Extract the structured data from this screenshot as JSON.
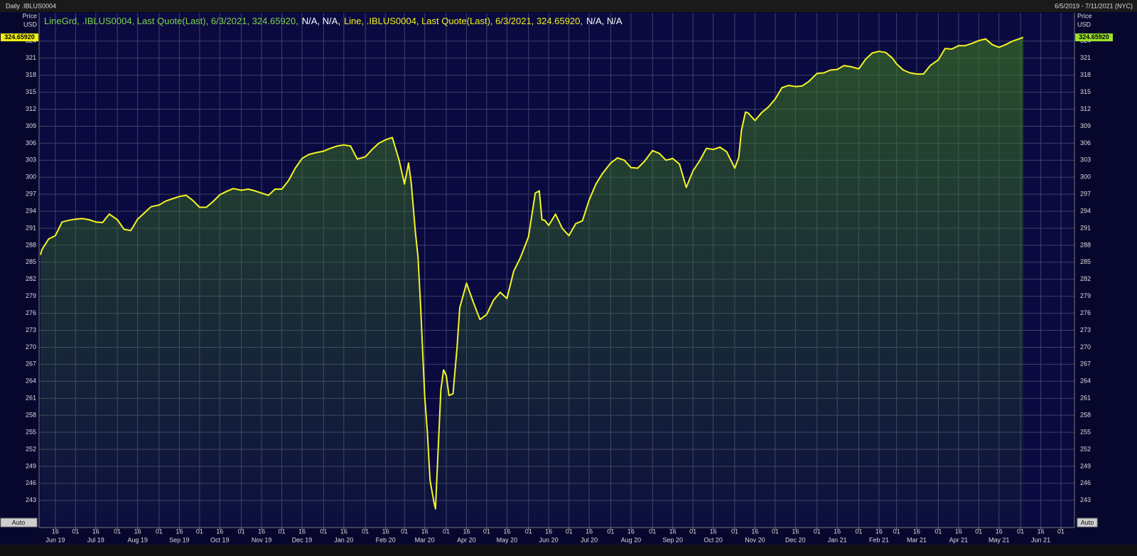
{
  "header": {
    "title": "Daily .IBLUS0004",
    "range": "6/5/2019 - 7/11/2021 (NYC)"
  },
  "auto_buttons": [
    "Auto",
    "Auto"
  ],
  "chart_data": {
    "type": "line",
    "legend": [
      {
        "text": "LineGrd, .IBLUS0004, Last Quote(Last), 6/3/2021, 324.65920,",
        "color": "#7ed44a"
      },
      {
        "text": "N/A, N/A,",
        "color": "#ffffff"
      },
      {
        "text": "Line, .IBLUS0004, Last Quote(Last), 6/3/2021, 324.65920,",
        "color": "#f2f21e"
      },
      {
        "text": "N/A, N/A",
        "color": "#ffffff"
      }
    ],
    "y_label": [
      "Price",
      "USD"
    ],
    "grid": true,
    "line_color": "#f5f522",
    "area_color": "#3f7d1f",
    "left_tag_color": "#f0f014",
    "right_tag_color": "#9ae22c",
    "xlim": [
      "2019-06-05",
      "2021-07-11"
    ],
    "ylim": [
      238.2,
      329
    ],
    "yticks": [
      243,
      246,
      249,
      252,
      255,
      258,
      261,
      264,
      267,
      270,
      273,
      276,
      279,
      282,
      285,
      288,
      291,
      294,
      297,
      300,
      303,
      306,
      309,
      312,
      315,
      318,
      321,
      324
    ],
    "xticks": [
      {
        "value": "2019-06-16",
        "label": "16"
      },
      {
        "value": "2019-07-01",
        "label": "01"
      },
      {
        "value": "2019-07-16",
        "label": "16"
      },
      {
        "value": "2019-08-01",
        "label": "01"
      },
      {
        "value": "2019-08-16",
        "label": "16"
      },
      {
        "value": "2019-09-01",
        "label": "01"
      },
      {
        "value": "2019-09-16",
        "label": "16"
      },
      {
        "value": "2019-10-01",
        "label": "01"
      },
      {
        "value": "2019-10-16",
        "label": "16"
      },
      {
        "value": "2019-11-01",
        "label": "01"
      },
      {
        "value": "2019-11-16",
        "label": "16"
      },
      {
        "value": "2019-12-01",
        "label": "01"
      },
      {
        "value": "2019-12-16",
        "label": "16"
      },
      {
        "value": "2020-01-01",
        "label": "01"
      },
      {
        "value": "2020-01-16",
        "label": "16"
      },
      {
        "value": "2020-02-01",
        "label": "01"
      },
      {
        "value": "2020-02-16",
        "label": "16"
      },
      {
        "value": "2020-03-01",
        "label": "01"
      },
      {
        "value": "2020-03-16",
        "label": "16"
      },
      {
        "value": "2020-04-01",
        "label": "01"
      },
      {
        "value": "2020-04-16",
        "label": "16"
      },
      {
        "value": "2020-05-01",
        "label": "01"
      },
      {
        "value": "2020-05-16",
        "label": "16"
      },
      {
        "value": "2020-06-01",
        "label": "01"
      },
      {
        "value": "2020-06-16",
        "label": "16"
      },
      {
        "value": "2020-07-01",
        "label": "01"
      },
      {
        "value": "2020-07-16",
        "label": "16"
      },
      {
        "value": "2020-08-01",
        "label": "01"
      },
      {
        "value": "2020-08-16",
        "label": "16"
      },
      {
        "value": "2020-09-01",
        "label": "01"
      },
      {
        "value": "2020-09-16",
        "label": "16"
      },
      {
        "value": "2020-10-01",
        "label": "01"
      },
      {
        "value": "2020-10-16",
        "label": "16"
      },
      {
        "value": "2020-11-01",
        "label": "01"
      },
      {
        "value": "2020-11-16",
        "label": "16"
      },
      {
        "value": "2020-12-01",
        "label": "01"
      },
      {
        "value": "2020-12-16",
        "label": "16"
      },
      {
        "value": "2021-01-01",
        "label": "01"
      },
      {
        "value": "2021-01-16",
        "label": "16"
      },
      {
        "value": "2021-02-01",
        "label": "01"
      },
      {
        "value": "2021-02-16",
        "label": "16"
      },
      {
        "value": "2021-03-01",
        "label": "01"
      },
      {
        "value": "2021-03-16",
        "label": "16"
      },
      {
        "value": "2021-04-01",
        "label": "01"
      },
      {
        "value": "2021-04-16",
        "label": "16"
      },
      {
        "value": "2021-05-01",
        "label": "01"
      },
      {
        "value": "2021-05-16",
        "label": "16"
      },
      {
        "value": "2021-06-01",
        "label": "01"
      },
      {
        "value": "2021-06-16",
        "label": "16"
      },
      {
        "value": "2021-07-01",
        "label": "01"
      }
    ],
    "month_labels": [
      {
        "value": "2019-06-16",
        "label": "Jun 19"
      },
      {
        "value": "2019-07-16",
        "label": "Jul 19"
      },
      {
        "value": "2019-08-16",
        "label": "Aug 19"
      },
      {
        "value": "2019-09-16",
        "label": "Sep 19"
      },
      {
        "value": "2019-10-16",
        "label": "Oct 19"
      },
      {
        "value": "2019-11-16",
        "label": "Nov 19"
      },
      {
        "value": "2019-12-16",
        "label": "Dec 19"
      },
      {
        "value": "2020-01-16",
        "label": "Jan 20"
      },
      {
        "value": "2020-02-16",
        "label": "Feb 20"
      },
      {
        "value": "2020-03-16",
        "label": "Mar 20"
      },
      {
        "value": "2020-04-16",
        "label": "Apr 20"
      },
      {
        "value": "2020-05-16",
        "label": "May 20"
      },
      {
        "value": "2020-06-16",
        "label": "Jun 20"
      },
      {
        "value": "2020-07-16",
        "label": "Jul 20"
      },
      {
        "value": "2020-08-16",
        "label": "Aug 20"
      },
      {
        "value": "2020-09-16",
        "label": "Sep 20"
      },
      {
        "value": "2020-10-16",
        "label": "Oct 20"
      },
      {
        "value": "2020-11-16",
        "label": "Nov 20"
      },
      {
        "value": "2020-12-16",
        "label": "Dec 20"
      },
      {
        "value": "2021-01-16",
        "label": "Jan 21"
      },
      {
        "value": "2021-02-16",
        "label": "Feb 21"
      },
      {
        "value": "2021-03-16",
        "label": "Mar 21"
      },
      {
        "value": "2021-04-16",
        "label": "Apr 21"
      },
      {
        "value": "2021-05-16",
        "label": "May 21"
      },
      {
        "value": "2021-06-16",
        "label": "Jun 21"
      }
    ],
    "x": [
      "2019-06-05",
      "2019-06-06",
      "2019-06-11",
      "2019-06-16",
      "2019-06-21",
      "2019-06-26",
      "2019-07-01",
      "2019-07-06",
      "2019-07-11",
      "2019-07-16",
      "2019-07-21",
      "2019-07-26",
      "2019-08-01",
      "2019-08-06",
      "2019-08-11",
      "2019-08-16",
      "2019-08-21",
      "2019-08-26",
      "2019-09-01",
      "2019-09-06",
      "2019-09-11",
      "2019-09-16",
      "2019-09-21",
      "2019-09-26",
      "2019-10-01",
      "2019-10-06",
      "2019-10-11",
      "2019-10-16",
      "2019-10-21",
      "2019-10-26",
      "2019-11-01",
      "2019-11-06",
      "2019-11-11",
      "2019-11-16",
      "2019-11-21",
      "2019-11-26",
      "2019-12-01",
      "2019-12-06",
      "2019-12-11",
      "2019-12-16",
      "2019-12-21",
      "2019-12-26",
      "2020-01-01",
      "2020-01-06",
      "2020-01-11",
      "2020-01-16",
      "2020-01-21",
      "2020-01-26",
      "2020-02-01",
      "2020-02-06",
      "2020-02-11",
      "2020-02-16",
      "2020-02-21",
      "2020-02-26",
      "2020-03-01",
      "2020-03-04",
      "2020-03-06",
      "2020-03-09",
      "2020-03-11",
      "2020-03-13",
      "2020-03-16",
      "2020-03-18",
      "2020-03-20",
      "2020-03-23",
      "2020-03-24",
      "2020-03-26",
      "2020-03-28",
      "2020-03-30",
      "2020-04-01",
      "2020-04-03",
      "2020-04-06",
      "2020-04-09",
      "2020-04-11",
      "2020-04-16",
      "2020-04-21",
      "2020-04-26",
      "2020-05-01",
      "2020-05-06",
      "2020-05-11",
      "2020-05-16",
      "2020-05-21",
      "2020-05-26",
      "2020-06-01",
      "2020-06-06",
      "2020-06-09",
      "2020-06-11",
      "2020-06-13",
      "2020-06-16",
      "2020-06-21",
      "2020-06-26",
      "2020-07-01",
      "2020-07-06",
      "2020-07-11",
      "2020-07-16",
      "2020-07-21",
      "2020-07-26",
      "2020-08-01",
      "2020-08-06",
      "2020-08-11",
      "2020-08-16",
      "2020-08-21",
      "2020-08-26",
      "2020-09-01",
      "2020-09-06",
      "2020-09-11",
      "2020-09-16",
      "2020-09-21",
      "2020-09-26",
      "2020-10-01",
      "2020-10-06",
      "2020-10-11",
      "2020-10-16",
      "2020-10-21",
      "2020-10-26",
      "2020-11-01",
      "2020-11-04",
      "2020-11-06",
      "2020-11-09",
      "2020-11-11",
      "2020-11-16",
      "2020-11-21",
      "2020-11-26",
      "2020-12-01",
      "2020-12-06",
      "2020-12-11",
      "2020-12-16",
      "2020-12-21",
      "2020-12-26",
      "2021-01-01",
      "2021-01-06",
      "2021-01-11",
      "2021-01-16",
      "2021-01-21",
      "2021-01-26",
      "2021-02-01",
      "2021-02-06",
      "2021-02-11",
      "2021-02-16",
      "2021-02-21",
      "2021-02-26",
      "2021-03-01",
      "2021-03-06",
      "2021-03-11",
      "2021-03-16",
      "2021-03-21",
      "2021-03-26",
      "2021-04-01",
      "2021-04-06",
      "2021-04-11",
      "2021-04-16",
      "2021-04-21",
      "2021-04-26",
      "2021-05-01",
      "2021-05-06",
      "2021-05-11",
      "2021-05-16",
      "2021-05-21",
      "2021-05-26",
      "2021-06-01",
      "2021-06-03"
    ],
    "series": [
      {
        "values": [
          286.3,
          287.2,
          289.1,
          289.7,
          292.1,
          292.4,
          292.6,
          292.7,
          292.5,
          292.1,
          292.0,
          293.5,
          292.5,
          290.8,
          290.6,
          292.6,
          293.7,
          294.8,
          295.1,
          295.8,
          296.2,
          296.6,
          296.8,
          295.9,
          294.7,
          294.7,
          295.7,
          296.9,
          297.5,
          298.0,
          297.7,
          297.9,
          297.6,
          297.2,
          296.8,
          297.9,
          297.9,
          299.4,
          301.6,
          303.3,
          304.0,
          304.3,
          304.6,
          305.1,
          305.5,
          305.7,
          305.5,
          303.2,
          303.6,
          304.9,
          306.0,
          306.6,
          307.0,
          303.0,
          298.8,
          302.5,
          299.0,
          290.5,
          286.0,
          277.0,
          261.5,
          255.0,
          246.5,
          242.5,
          241.5,
          252.0,
          262.5,
          266.0,
          265.0,
          261.5,
          261.8,
          270.0,
          277.0,
          281.3,
          278.0,
          274.9,
          275.8,
          278.3,
          279.7,
          278.6,
          283.4,
          285.8,
          289.5,
          297.2,
          297.6,
          292.5,
          292.4,
          291.5,
          293.5,
          291.0,
          289.7,
          291.8,
          292.3,
          296.0,
          298.8,
          300.7,
          302.5,
          303.4,
          303.0,
          301.7,
          301.6,
          302.8,
          304.7,
          304.2,
          303.0,
          303.3,
          302.3,
          298.2,
          301.1,
          302.9,
          305.1,
          304.9,
          305.3,
          304.5,
          301.6,
          303.5,
          308.3,
          311.5,
          311.3,
          310.0,
          311.4,
          312.4,
          313.8,
          315.8,
          316.2,
          316.0,
          316.1,
          316.9,
          318.3,
          318.4,
          318.9,
          319.0,
          319.7,
          319.5,
          319.1,
          320.8,
          321.9,
          322.2,
          322.0,
          321.0,
          320.0,
          318.9,
          318.4,
          318.2,
          318.2,
          319.7,
          320.7,
          322.7,
          322.6,
          323.2,
          323.2,
          323.6,
          324.1,
          324.4,
          323.4,
          322.9,
          323.4,
          324.0,
          324.5,
          324.6592
        ],
        "value_labels": [
          null,
          null,
          null,
          null,
          null,
          null,
          null,
          null,
          null,
          null,
          null,
          null,
          null,
          null,
          null,
          null,
          null,
          null,
          null,
          null,
          null,
          null,
          null,
          null,
          null,
          null,
          null,
          null,
          null,
          null,
          null,
          null,
          null,
          null,
          null,
          null,
          null,
          null,
          null,
          null,
          null,
          null,
          null,
          null,
          null,
          null,
          null,
          null,
          null,
          null,
          null,
          null,
          null,
          null,
          null,
          null,
          null,
          null,
          null,
          null,
          null,
          null,
          null,
          null,
          null,
          null,
          null,
          null,
          null,
          null,
          null,
          null,
          null,
          null,
          null,
          null,
          null,
          null,
          null,
          null,
          null,
          null,
          null,
          null,
          null,
          null,
          null,
          null,
          null,
          null,
          null,
          null,
          null,
          null,
          null,
          null,
          null,
          null,
          null,
          null,
          null,
          null,
          null,
          null,
          null,
          null,
          null,
          null,
          null,
          null,
          null,
          null,
          null,
          null,
          null,
          null,
          null,
          null,
          null,
          null,
          null,
          null,
          null,
          null,
          null,
          null,
          null,
          null,
          null,
          null,
          null,
          null,
          null,
          null,
          null,
          null,
          null,
          null,
          null,
          null,
          null,
          null,
          null,
          null,
          null,
          null,
          null,
          null,
          null,
          null,
          null,
          null,
          null,
          null,
          null,
          null,
          null,
          null,
          null,
          "324.65920"
        ]
      }
    ]
  }
}
